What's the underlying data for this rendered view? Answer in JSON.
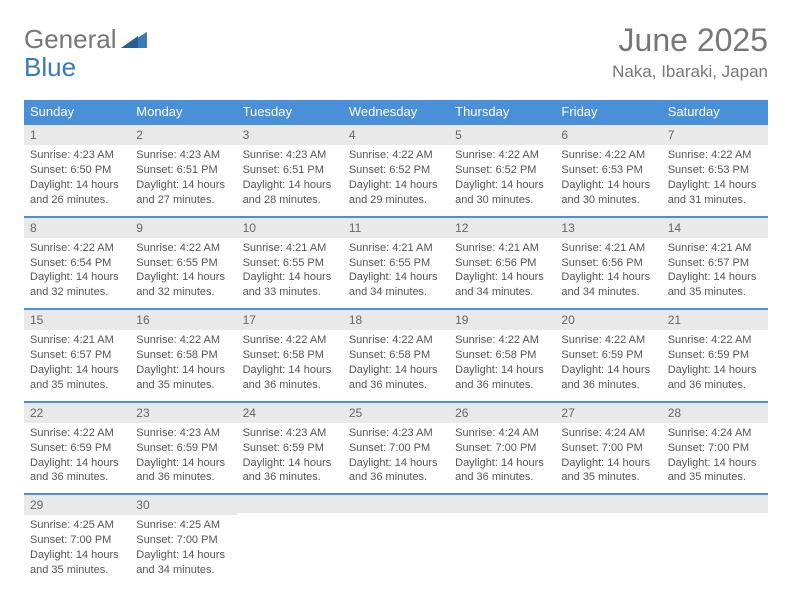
{
  "logo": {
    "word1": "General",
    "word2": "Blue"
  },
  "header": {
    "title": "June 2025",
    "location": "Naka, Ibaraki, Japan"
  },
  "colors": {
    "header_bg": "#4a90d9",
    "header_text": "#ffffff",
    "row_border": "#4a90d9",
    "daynum_bg": "#e9e9e9",
    "text_color": "#555555",
    "title_color": "#777777",
    "page_bg": "#ffffff",
    "logo_gray": "#777777",
    "logo_blue": "#3a7ab8"
  },
  "fonts": {
    "title_size": 32,
    "location_size": 17,
    "dayhead_size": 13,
    "cell_size": 11
  },
  "calendar": {
    "columns": [
      "Sunday",
      "Monday",
      "Tuesday",
      "Wednesday",
      "Thursday",
      "Friday",
      "Saturday"
    ],
    "weeks": [
      [
        {
          "day": "1",
          "sunrise": "4:23 AM",
          "sunset": "6:50 PM",
          "daylight": "14 hours and 26 minutes."
        },
        {
          "day": "2",
          "sunrise": "4:23 AM",
          "sunset": "6:51 PM",
          "daylight": "14 hours and 27 minutes."
        },
        {
          "day": "3",
          "sunrise": "4:23 AM",
          "sunset": "6:51 PM",
          "daylight": "14 hours and 28 minutes."
        },
        {
          "day": "4",
          "sunrise": "4:22 AM",
          "sunset": "6:52 PM",
          "daylight": "14 hours and 29 minutes."
        },
        {
          "day": "5",
          "sunrise": "4:22 AM",
          "sunset": "6:52 PM",
          "daylight": "14 hours and 30 minutes."
        },
        {
          "day": "6",
          "sunrise": "4:22 AM",
          "sunset": "6:53 PM",
          "daylight": "14 hours and 30 minutes."
        },
        {
          "day": "7",
          "sunrise": "4:22 AM",
          "sunset": "6:53 PM",
          "daylight": "14 hours and 31 minutes."
        }
      ],
      [
        {
          "day": "8",
          "sunrise": "4:22 AM",
          "sunset": "6:54 PM",
          "daylight": "14 hours and 32 minutes."
        },
        {
          "day": "9",
          "sunrise": "4:22 AM",
          "sunset": "6:55 PM",
          "daylight": "14 hours and 32 minutes."
        },
        {
          "day": "10",
          "sunrise": "4:21 AM",
          "sunset": "6:55 PM",
          "daylight": "14 hours and 33 minutes."
        },
        {
          "day": "11",
          "sunrise": "4:21 AM",
          "sunset": "6:55 PM",
          "daylight": "14 hours and 34 minutes."
        },
        {
          "day": "12",
          "sunrise": "4:21 AM",
          "sunset": "6:56 PM",
          "daylight": "14 hours and 34 minutes."
        },
        {
          "day": "13",
          "sunrise": "4:21 AM",
          "sunset": "6:56 PM",
          "daylight": "14 hours and 34 minutes."
        },
        {
          "day": "14",
          "sunrise": "4:21 AM",
          "sunset": "6:57 PM",
          "daylight": "14 hours and 35 minutes."
        }
      ],
      [
        {
          "day": "15",
          "sunrise": "4:21 AM",
          "sunset": "6:57 PM",
          "daylight": "14 hours and 35 minutes."
        },
        {
          "day": "16",
          "sunrise": "4:22 AM",
          "sunset": "6:58 PM",
          "daylight": "14 hours and 35 minutes."
        },
        {
          "day": "17",
          "sunrise": "4:22 AM",
          "sunset": "6:58 PM",
          "daylight": "14 hours and 36 minutes."
        },
        {
          "day": "18",
          "sunrise": "4:22 AM",
          "sunset": "6:58 PM",
          "daylight": "14 hours and 36 minutes."
        },
        {
          "day": "19",
          "sunrise": "4:22 AM",
          "sunset": "6:58 PM",
          "daylight": "14 hours and 36 minutes."
        },
        {
          "day": "20",
          "sunrise": "4:22 AM",
          "sunset": "6:59 PM",
          "daylight": "14 hours and 36 minutes."
        },
        {
          "day": "21",
          "sunrise": "4:22 AM",
          "sunset": "6:59 PM",
          "daylight": "14 hours and 36 minutes."
        }
      ],
      [
        {
          "day": "22",
          "sunrise": "4:22 AM",
          "sunset": "6:59 PM",
          "daylight": "14 hours and 36 minutes."
        },
        {
          "day": "23",
          "sunrise": "4:23 AM",
          "sunset": "6:59 PM",
          "daylight": "14 hours and 36 minutes."
        },
        {
          "day": "24",
          "sunrise": "4:23 AM",
          "sunset": "6:59 PM",
          "daylight": "14 hours and 36 minutes."
        },
        {
          "day": "25",
          "sunrise": "4:23 AM",
          "sunset": "7:00 PM",
          "daylight": "14 hours and 36 minutes."
        },
        {
          "day": "26",
          "sunrise": "4:24 AM",
          "sunset": "7:00 PM",
          "daylight": "14 hours and 36 minutes."
        },
        {
          "day": "27",
          "sunrise": "4:24 AM",
          "sunset": "7:00 PM",
          "daylight": "14 hours and 35 minutes."
        },
        {
          "day": "28",
          "sunrise": "4:24 AM",
          "sunset": "7:00 PM",
          "daylight": "14 hours and 35 minutes."
        }
      ],
      [
        {
          "day": "29",
          "sunrise": "4:25 AM",
          "sunset": "7:00 PM",
          "daylight": "14 hours and 35 minutes."
        },
        {
          "day": "30",
          "sunrise": "4:25 AM",
          "sunset": "7:00 PM",
          "daylight": "14 hours and 34 minutes."
        },
        null,
        null,
        null,
        null,
        null
      ]
    ],
    "labels": {
      "sunrise": "Sunrise: ",
      "sunset": "Sunset: ",
      "daylight": "Daylight: "
    }
  }
}
